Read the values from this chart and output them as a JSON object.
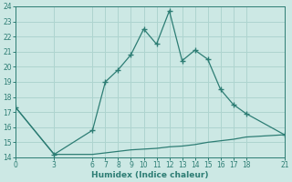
{
  "xlabel": "Humidex (Indice chaleur)",
  "x_data": [
    0,
    3,
    6,
    7,
    8,
    9,
    10,
    11,
    12,
    13,
    14,
    15,
    16,
    17,
    18,
    21
  ],
  "y_data": [
    17.3,
    14.2,
    15.8,
    19.0,
    19.8,
    20.8,
    22.5,
    21.5,
    23.7,
    20.4,
    21.1,
    20.5,
    18.5,
    17.5,
    16.9,
    15.5
  ],
  "y_data2": [
    17.3,
    14.2,
    14.2,
    14.3,
    14.4,
    14.5,
    14.55,
    14.6,
    14.7,
    14.75,
    14.85,
    15.0,
    15.1,
    15.2,
    15.35,
    15.5
  ],
  "line_color": "#2d7d74",
  "bg_color": "#cce8e4",
  "grid_color": "#aed4cf",
  "xticks": [
    0,
    3,
    6,
    7,
    8,
    9,
    10,
    11,
    12,
    13,
    14,
    15,
    16,
    17,
    18,
    21
  ],
  "yticks": [
    14,
    15,
    16,
    17,
    18,
    19,
    20,
    21,
    22,
    23,
    24
  ],
  "xlim": [
    0,
    21
  ],
  "ylim": [
    14,
    24
  ],
  "tick_fontsize": 5.5,
  "xlabel_fontsize": 6.5
}
